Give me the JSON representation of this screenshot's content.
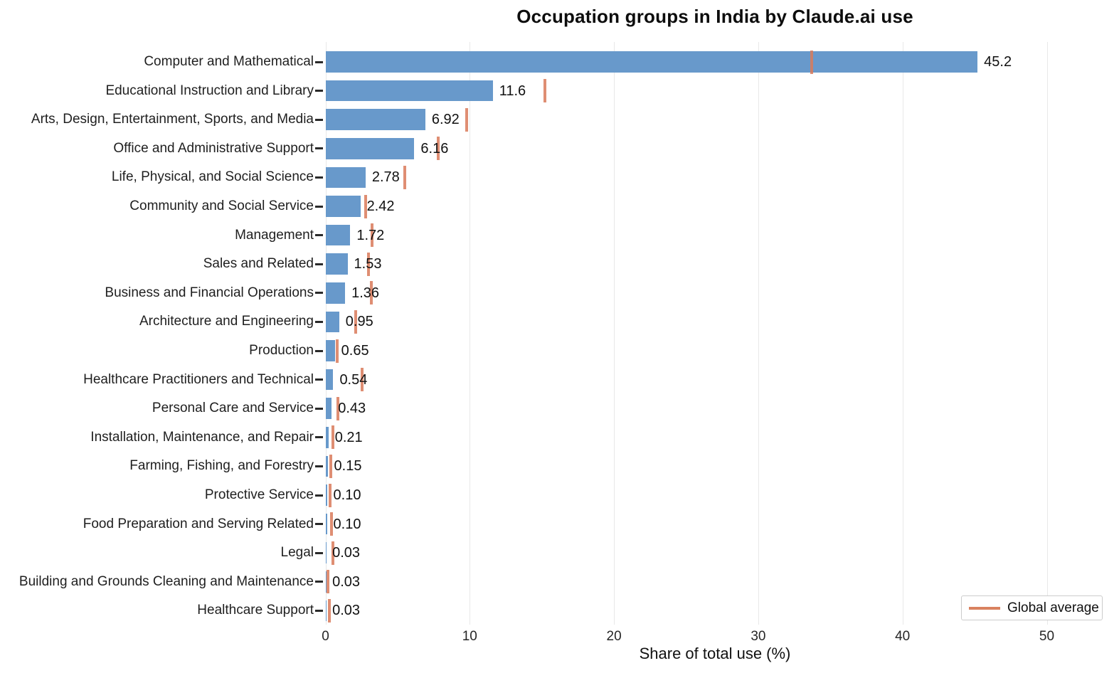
{
  "chart_data": {
    "type": "bar",
    "orientation": "horizontal",
    "title": "Occupation groups in India by Claude.ai use",
    "xlabel": "Share of total use (%)",
    "xlim": [
      0,
      54
    ],
    "x_ticks": [
      0,
      10,
      20,
      30,
      40,
      50
    ],
    "grid": "vertical-light",
    "legend_position": "lower right",
    "legend_label": "Global average",
    "categories": [
      "Computer and Mathematical",
      "Educational Instruction and Library",
      "Arts, Design, Entertainment, Sports, and Media",
      "Office and Administrative Support",
      "Life, Physical, and Social Science",
      "Community and Social Service",
      "Management",
      "Sales and Related",
      "Business and Financial Operations",
      "Architecture and Engineering",
      "Production",
      "Healthcare Practitioners and Technical",
      "Personal Care and Service",
      "Installation, Maintenance, and Repair",
      "Farming, Fishing, and Forestry",
      "Protective Service",
      "Food Preparation and Serving Related",
      "Legal",
      "Building and Grounds Cleaning and Maintenance",
      "Healthcare Support"
    ],
    "values": [
      45.2,
      11.6,
      6.92,
      6.16,
      2.78,
      2.42,
      1.72,
      1.53,
      1.36,
      0.95,
      0.65,
      0.54,
      0.43,
      0.21,
      0.15,
      0.1,
      0.1,
      0.03,
      0.03,
      0.03
    ],
    "value_labels": [
      "45.2",
      "11.6",
      "6.92",
      "6.16",
      "2.78",
      "2.42",
      "1.72",
      "1.53",
      "1.36",
      "0.95",
      "0.65",
      "0.54",
      "0.43",
      "0.21",
      "0.15",
      "0.10",
      "0.10",
      "0.03",
      "0.03",
      "0.03"
    ],
    "series": [
      {
        "name": "India share of total use (%)",
        "values": [
          45.2,
          11.6,
          6.92,
          6.16,
          2.78,
          2.42,
          1.72,
          1.53,
          1.36,
          0.95,
          0.65,
          0.54,
          0.43,
          0.21,
          0.15,
          0.1,
          0.1,
          0.03,
          0.03,
          0.03
        ]
      },
      {
        "name": "Global average",
        "values": [
          33.7,
          15.2,
          9.8,
          7.8,
          5.5,
          2.8,
          3.25,
          3.0,
          3.2,
          2.1,
          0.8,
          2.55,
          0.85,
          0.5,
          0.35,
          0.3,
          0.4,
          0.5,
          0.16,
          0.25
        ]
      }
    ],
    "colors": {
      "bar": "#6899cb",
      "global_average_marker": "#d97a5a",
      "gridline": "#e8e8e8",
      "text": "#1a1a1a"
    }
  }
}
